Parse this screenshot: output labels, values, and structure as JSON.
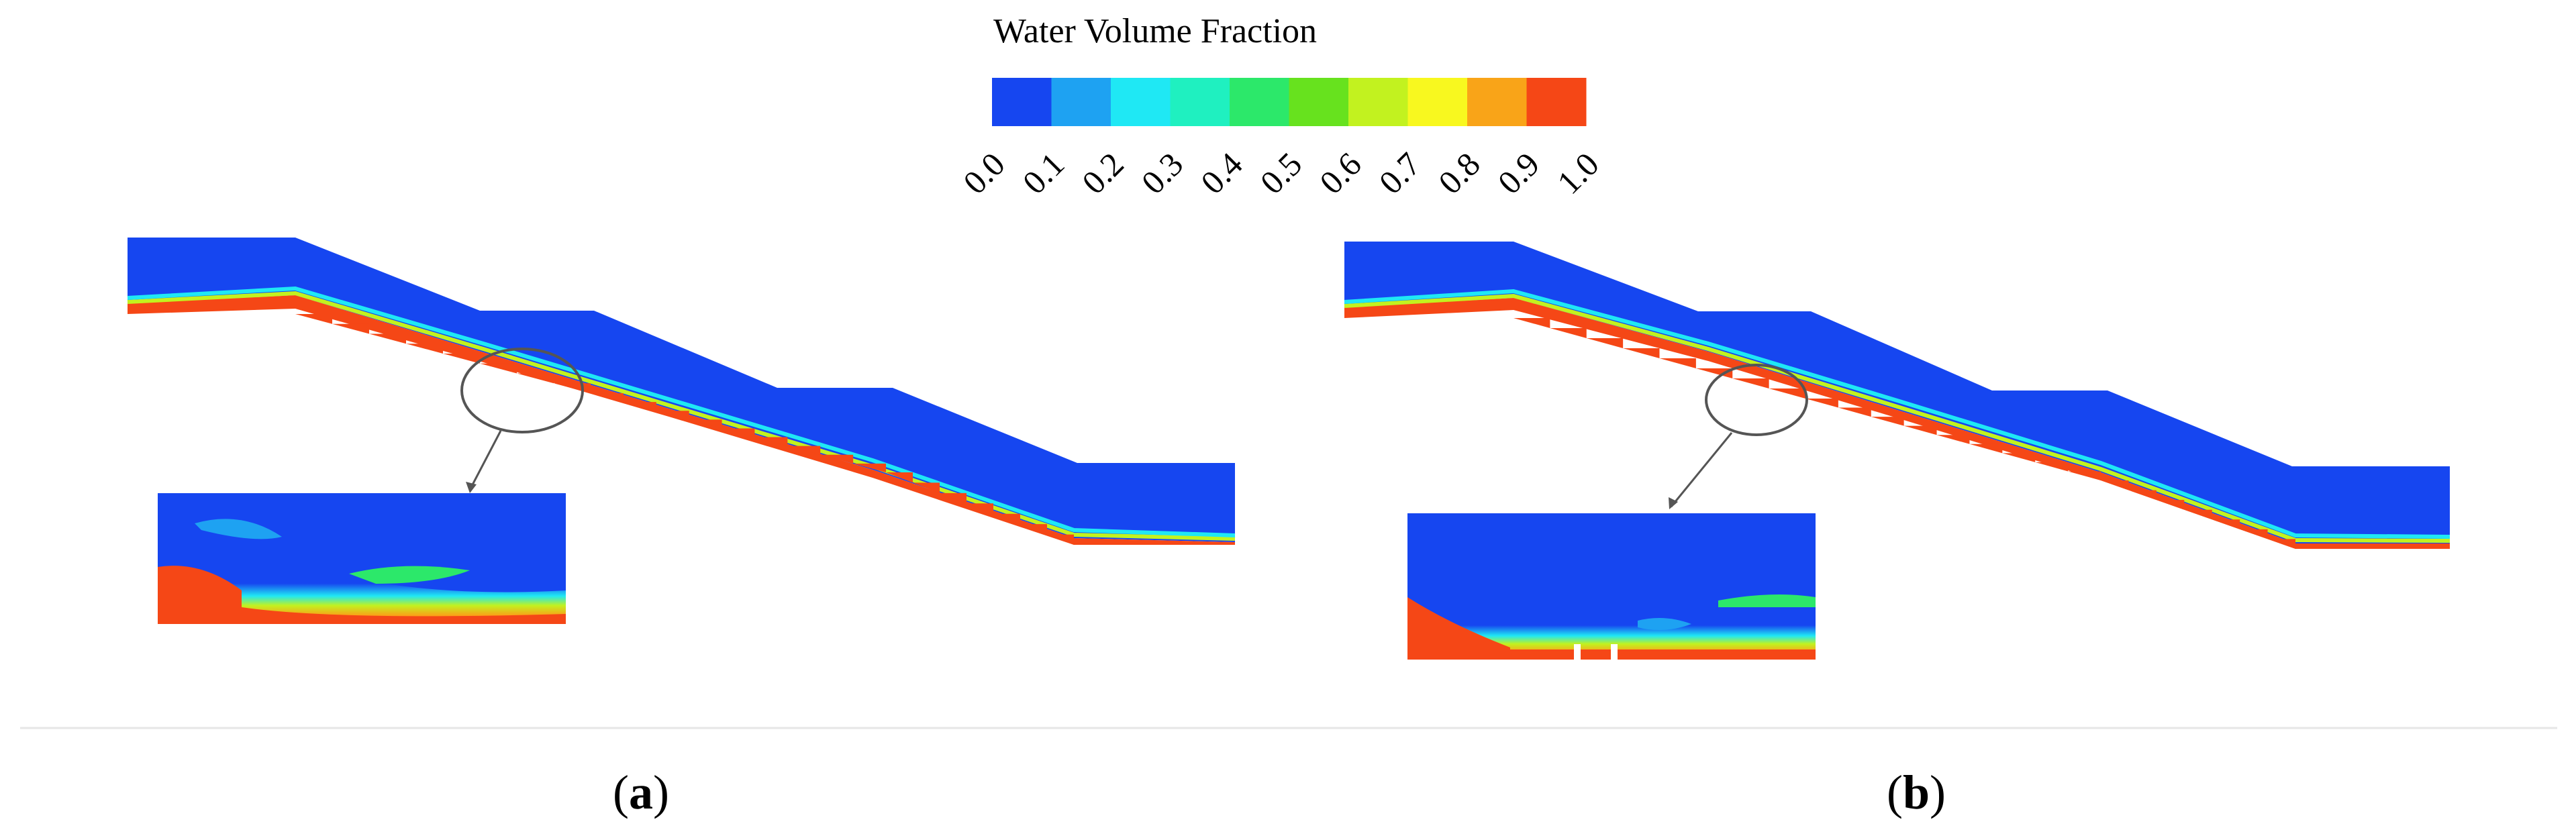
{
  "legend": {
    "title": "Water Volume Fraction",
    "colors": [
      "#1646f0",
      "#1ea2f2",
      "#1fe8f4",
      "#1ff0c0",
      "#2ce86a",
      "#67e21e",
      "#c2f21f",
      "#f8f81f",
      "#f9a418",
      "#f54716"
    ],
    "ticks": [
      "0.0",
      "0.1",
      "0.2",
      "0.3",
      "0.4",
      "0.5",
      "0.6",
      "0.7",
      "0.8",
      "0.9",
      "1.0"
    ]
  },
  "panels": [
    {
      "open": "(",
      "letter": "a",
      "close": ")"
    },
    {
      "open": "(",
      "letter": "b",
      "close": ")"
    }
  ]
}
